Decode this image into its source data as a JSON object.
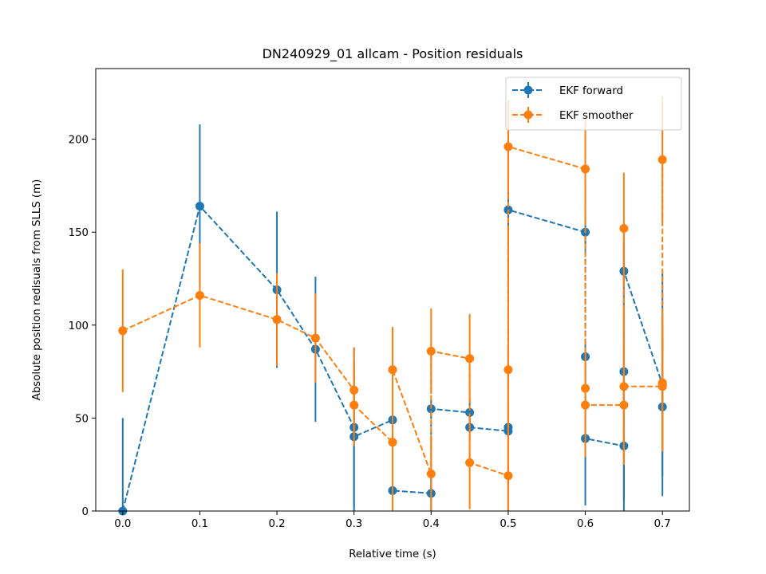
{
  "chart_data": {
    "type": "line",
    "title": "DN240929_01 allcam - Position residuals",
    "xlabel": "Relative time (s)",
    "ylabel": "Absolute position redisuals from SLLS (m)",
    "xlim": [
      -0.035,
      0.735
    ],
    "ylim": [
      0,
      238
    ],
    "xticks": [
      "0.0",
      "0.1",
      "0.2",
      "0.3",
      "0.4",
      "0.5",
      "0.6",
      "0.7"
    ],
    "yticks": [
      "0",
      "50",
      "100",
      "150",
      "200"
    ],
    "grid": false,
    "legend_position": "top-right",
    "series": [
      {
        "name": "EKF forward",
        "color": "#1f77b4",
        "line_style": "dashed",
        "marker": "circle",
        "points": [
          {
            "x": 0.0,
            "y": 0.0,
            "err": 50.0
          },
          {
            "x": 0.1,
            "y": 164.0,
            "err": 44.0
          },
          {
            "x": 0.2,
            "y": 119.0,
            "err": 42.0
          },
          {
            "x": 0.25,
            "y": 87.0,
            "err": 39.0
          },
          {
            "x": 0.3,
            "y": 45.0,
            "err": 43.0
          },
          {
            "x": 0.3,
            "y": 40.0,
            "err": 40.0
          },
          {
            "x": 0.35,
            "y": 49.0,
            "err": 44.0
          },
          {
            "x": 0.35,
            "y": 11.0,
            "err": 11.0
          },
          {
            "x": 0.4,
            "y": 9.5,
            "err": 9.5
          },
          {
            "x": 0.4,
            "y": 55.0,
            "err": 5.0
          },
          {
            "x": 0.45,
            "y": 53.0,
            "err": 8.0
          },
          {
            "x": 0.45,
            "y": 45.0,
            "err": 6.0
          },
          {
            "x": 0.5,
            "y": 43.0,
            "err": 43.0
          },
          {
            "x": 0.5,
            "y": 45.0,
            "err": 45.0
          },
          {
            "x": 0.5,
            "y": 162.0,
            "err": 45.0
          },
          {
            "x": 0.6,
            "y": 150.0,
            "err": 10.0
          },
          {
            "x": 0.6,
            "y": 83.0,
            "err": 8.0
          },
          {
            "x": 0.6,
            "y": 39.0,
            "err": 36.0
          },
          {
            "x": 0.65,
            "y": 35.0,
            "err": 35.0
          },
          {
            "x": 0.65,
            "y": 75.0,
            "err": 70.0
          },
          {
            "x": 0.65,
            "y": 129.0,
            "err": 19.0
          },
          {
            "x": 0.7,
            "y": 68.0,
            "err": 60.0
          },
          {
            "x": 0.7,
            "y": 56.0,
            "err": 37.0
          }
        ]
      },
      {
        "name": "EKF smoother",
        "color": "#ff7f0e",
        "line_style": "dashed",
        "marker": "circle",
        "points": [
          {
            "x": 0.0,
            "y": 97.0,
            "err": 33.0
          },
          {
            "x": 0.1,
            "y": 116.0,
            "err": 28.0
          },
          {
            "x": 0.2,
            "y": 103.0,
            "err": 25.0
          },
          {
            "x": 0.25,
            "y": 93.0,
            "err": 24.0
          },
          {
            "x": 0.3,
            "y": 65.0,
            "err": 23.0
          },
          {
            "x": 0.3,
            "y": 57.0,
            "err": 22.0
          },
          {
            "x": 0.35,
            "y": 37.0,
            "err": 37.0
          },
          {
            "x": 0.35,
            "y": 76.0,
            "err": 23.0
          },
          {
            "x": 0.4,
            "y": 20.0,
            "err": 20.0
          },
          {
            "x": 0.4,
            "y": 86.0,
            "err": 23.0
          },
          {
            "x": 0.45,
            "y": 82.0,
            "err": 24.0
          },
          {
            "x": 0.45,
            "y": 26.0,
            "err": 25.0
          },
          {
            "x": 0.5,
            "y": 19.0,
            "err": 19.0
          },
          {
            "x": 0.5,
            "y": 76.0,
            "err": 76.0
          },
          {
            "x": 0.5,
            "y": 196.0,
            "err": 25.0
          },
          {
            "x": 0.6,
            "y": 184.0,
            "err": 28.0
          },
          {
            "x": 0.6,
            "y": 66.0,
            "err": 12.0
          },
          {
            "x": 0.6,
            "y": 57.0,
            "err": 28.0
          },
          {
            "x": 0.65,
            "y": 57.0,
            "err": 32.0
          },
          {
            "x": 0.65,
            "y": 152.0,
            "err": 30.0
          },
          {
            "x": 0.65,
            "y": 67.0,
            "err": 42.0
          },
          {
            "x": 0.7,
            "y": 67.0,
            "err": 34.0
          },
          {
            "x": 0.7,
            "y": 189.0,
            "err": 34.0
          },
          {
            "x": 0.7,
            "y": 69.0,
            "err": 37.0
          }
        ]
      }
    ]
  }
}
